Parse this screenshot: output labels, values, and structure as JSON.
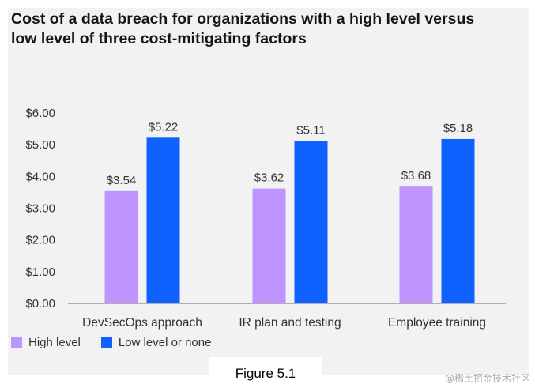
{
  "chart_data": {
    "type": "bar",
    "title": "Cost of a data breach for organizations with a high level versus low level of three cost-mitigating factors",
    "categories": [
      "DevSecOps approach",
      "IR plan and testing",
      "Employee training"
    ],
    "series": [
      {
        "name": "High level",
        "values": [
          3.54,
          3.62,
          3.68
        ],
        "labels": [
          "$3.54",
          "$3.62",
          "$3.68"
        ],
        "color": "#be95ff"
      },
      {
        "name": "Low level or none",
        "values": [
          5.22,
          5.11,
          5.18
        ],
        "labels": [
          "$5.22",
          "$5.11",
          "$5.18"
        ],
        "color": "#0f62fe"
      }
    ],
    "yticks": [
      0,
      1,
      2,
      3,
      4,
      5,
      6
    ],
    "ytick_labels": [
      "$0.00",
      "$1.00",
      "$2.00",
      "$3.00",
      "$4.00",
      "$5.00",
      "$6.00"
    ],
    "ylim": [
      0,
      6
    ],
    "xlabel": "",
    "ylabel": "",
    "grid": false,
    "legend_position": "bottom-left"
  },
  "caption": "Figure 5.1",
  "watermark": "@稀土掘金技术社区"
}
